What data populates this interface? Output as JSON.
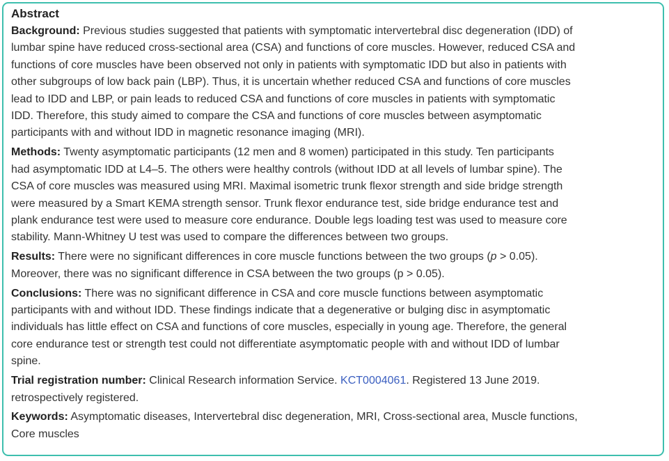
{
  "title": "Abstract",
  "sections": [
    {
      "label": "Background:",
      "lines": [
        "Previous studies suggested that patients with symptomatic intervertebral disc degeneration (IDD) of",
        "lumbar spine have reduced cross-sectional area (CSA) and functions of core muscles. However, reduced CSA and",
        "functions of core muscles have been observed not only in patients with symptomatic IDD but also in patients with",
        "other subgroups of low back pain (LBP). Thus, it is uncertain whether reduced CSA and functions of core muscles",
        "lead to IDD and LBP, or pain leads to reduced CSA and functions of core muscles in patients with symptomatic",
        "IDD. Therefore, this study aimed to compare the CSA and functions of core muscles between asymptomatic",
        "participants with and without IDD in magnetic resonance imaging (MRI)."
      ]
    },
    {
      "label": "Methods:",
      "lines": [
        "Twenty asymptomatic participants (12 men and 8 women) participated in this study. Ten participants",
        "had asymptomatic IDD at L4–5. The others were healthy controls (without IDD at all levels of lumbar spine). The",
        "CSA of core muscles was measured using MRI. Maximal isometric trunk flexor strength and side bridge strength",
        "were measured by a Smart KEMA strength sensor. Trunk flexor endurance test, side bridge endurance test and",
        "plank endurance test were used to measure core endurance. Double legs loading test was used to measure core",
        "stability. Mann-Whitney U test was used to compare the differences between two groups."
      ]
    },
    {
      "label": "Results:",
      "lines": [
        "There were no significant differences in core muscle functions between the two groups (",
        "Moreover, there was no significant difference in CSA between the two groups (p > 0.05)."
      ],
      "p_italic": "p",
      "p_rest": " > 0.05)."
    },
    {
      "label": "Conclusions:",
      "lines": [
        "There was no significant difference in CSA and core muscle functions between asymptomatic",
        "participants with and without IDD. These findings indicate that a degenerative or bulging disc in asymptomatic",
        "individuals has little effect on CSA and functions of core muscles, especially in young age. Therefore, the general",
        "core endurance test or strength test could not differentiate asymptomatic people with and without IDD of lumbar",
        "spine."
      ]
    },
    {
      "label": "Trial registration number:",
      "before_link": "Clinical Research information Service. ",
      "link": "KCT0004061",
      "after_link": ". Registered 13 June 2019.",
      "line2": "retrospectively registered."
    },
    {
      "label": "Keywords:",
      "lines": [
        "Asymptomatic diseases, Intervertebral disc degeneration, MRI, Cross-sectional area, Muscle functions,",
        "Core muscles"
      ]
    }
  ],
  "colors": {
    "border": "#3dbfae",
    "link": "#3b5fc0"
  }
}
